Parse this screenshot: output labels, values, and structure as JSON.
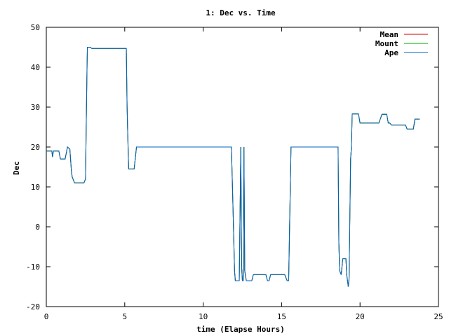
{
  "chart_data": {
    "type": "line",
    "title": "1: Dec vs. Time",
    "xlabel": "time (Elapse Hours)",
    "ylabel": "Dec",
    "xlim": [
      0,
      25
    ],
    "ylim": [
      -20,
      50
    ],
    "x_ticks": [
      "0",
      "5",
      "10",
      "15",
      "20",
      "25"
    ],
    "y_ticks": [
      "-20",
      "-10",
      "0",
      "10",
      "20",
      "30",
      "40",
      "50"
    ],
    "grid": false,
    "legend_position": "top-right",
    "series": [
      {
        "name": "Mean",
        "color": "#cc0000",
        "points": [
          [
            0,
            19
          ],
          [
            0.35,
            19
          ],
          [
            0.4,
            17.5
          ],
          [
            0.45,
            19
          ],
          [
            0.8,
            19
          ],
          [
            0.9,
            17
          ],
          [
            1.2,
            17
          ],
          [
            1.35,
            20
          ],
          [
            1.5,
            19.5
          ],
          [
            1.6,
            14
          ],
          [
            1.65,
            12.5
          ],
          [
            1.8,
            11
          ],
          [
            2.4,
            11
          ],
          [
            2.5,
            12
          ],
          [
            2.55,
            27
          ],
          [
            2.6,
            41
          ],
          [
            2.62,
            45
          ],
          [
            2.8,
            45
          ],
          [
            2.9,
            44.7
          ],
          [
            3.5,
            44.7
          ],
          [
            5.1,
            44.7
          ],
          [
            5.15,
            30
          ],
          [
            5.2,
            22
          ],
          [
            5.25,
            14.5
          ],
          [
            5.6,
            14.5
          ],
          [
            5.75,
            20
          ],
          [
            10.5,
            20
          ],
          [
            11.8,
            20
          ],
          [
            11.9,
            5
          ],
          [
            12.0,
            -11
          ],
          [
            12.05,
            -13.5
          ],
          [
            12.3,
            -13.5
          ],
          [
            12.4,
            20
          ],
          [
            12.45,
            -10
          ],
          [
            12.5,
            -13.5
          ],
          [
            12.55,
            -13.5
          ],
          [
            12.6,
            20
          ],
          [
            12.65,
            -11
          ],
          [
            12.75,
            -13.5
          ],
          [
            13.1,
            -13.5
          ],
          [
            13.2,
            -12
          ],
          [
            14.0,
            -12
          ],
          [
            14.1,
            -13.5
          ],
          [
            14.2,
            -13.5
          ],
          [
            14.3,
            -12
          ],
          [
            15.0,
            -12
          ],
          [
            15.2,
            -12
          ],
          [
            15.35,
            -13.5
          ],
          [
            15.45,
            -13.5
          ],
          [
            15.5,
            -2
          ],
          [
            15.6,
            20
          ],
          [
            16.5,
            20
          ],
          [
            18.6,
            20
          ],
          [
            18.65,
            -4
          ],
          [
            18.7,
            -11
          ],
          [
            18.8,
            -12
          ],
          [
            18.9,
            -8
          ],
          [
            19.1,
            -8
          ],
          [
            19.15,
            -12
          ],
          [
            19.25,
            -15
          ],
          [
            19.3,
            -13
          ],
          [
            19.4,
            17
          ],
          [
            19.45,
            20
          ],
          [
            19.5,
            28.3
          ],
          [
            19.9,
            28.3
          ],
          [
            20.0,
            26
          ],
          [
            20.5,
            26
          ],
          [
            21.2,
            26
          ],
          [
            21.4,
            28.2
          ],
          [
            21.7,
            28.2
          ],
          [
            21.8,
            26
          ],
          [
            21.9,
            26
          ],
          [
            22.0,
            25.5
          ],
          [
            22.9,
            25.5
          ],
          [
            23.0,
            24.5
          ],
          [
            23.4,
            24.5
          ],
          [
            23.5,
            27
          ],
          [
            23.8,
            27
          ]
        ]
      },
      {
        "name": "Mount",
        "color": "#00aa00",
        "points": [
          [
            0,
            19
          ],
          [
            0.35,
            19
          ],
          [
            0.4,
            17.5
          ],
          [
            0.45,
            19
          ],
          [
            0.8,
            19
          ],
          [
            0.9,
            17
          ],
          [
            1.2,
            17
          ],
          [
            1.35,
            20
          ],
          [
            1.5,
            19.5
          ],
          [
            1.6,
            14
          ],
          [
            1.65,
            12.5
          ],
          [
            1.8,
            11
          ],
          [
            2.4,
            11
          ],
          [
            2.5,
            12
          ],
          [
            2.55,
            27
          ],
          [
            2.6,
            41
          ],
          [
            2.62,
            45
          ],
          [
            2.8,
            45
          ],
          [
            2.9,
            44.7
          ],
          [
            3.5,
            44.7
          ],
          [
            5.1,
            44.7
          ],
          [
            5.15,
            30
          ],
          [
            5.2,
            22
          ],
          [
            5.25,
            14.5
          ],
          [
            5.6,
            14.5
          ],
          [
            5.75,
            20
          ],
          [
            10.5,
            20
          ],
          [
            11.8,
            20
          ],
          [
            11.9,
            5
          ],
          [
            12.0,
            -11
          ],
          [
            12.05,
            -13.5
          ],
          [
            12.3,
            -13.5
          ],
          [
            12.4,
            20
          ],
          [
            12.45,
            -10
          ],
          [
            12.5,
            -13.5
          ],
          [
            12.55,
            -13.5
          ],
          [
            12.6,
            20
          ],
          [
            12.65,
            -11
          ],
          [
            12.75,
            -13.5
          ],
          [
            13.1,
            -13.5
          ],
          [
            13.2,
            -12
          ],
          [
            14.0,
            -12
          ],
          [
            14.1,
            -13.5
          ],
          [
            14.2,
            -13.5
          ],
          [
            14.3,
            -12
          ],
          [
            15.0,
            -12
          ],
          [
            15.2,
            -12
          ],
          [
            15.35,
            -13.5
          ],
          [
            15.45,
            -13.5
          ],
          [
            15.5,
            -2
          ],
          [
            15.6,
            20
          ],
          [
            16.5,
            20
          ],
          [
            18.6,
            20
          ],
          [
            18.65,
            -4
          ],
          [
            18.7,
            -11
          ],
          [
            18.8,
            -12
          ],
          [
            18.9,
            -8
          ],
          [
            19.1,
            -8
          ],
          [
            19.15,
            -12
          ],
          [
            19.25,
            -15
          ],
          [
            19.3,
            -13
          ],
          [
            19.4,
            17
          ],
          [
            19.45,
            20
          ],
          [
            19.5,
            28.3
          ],
          [
            19.9,
            28.3
          ],
          [
            20.0,
            26
          ],
          [
            20.5,
            26
          ],
          [
            21.2,
            26
          ],
          [
            21.4,
            28.2
          ],
          [
            21.7,
            28.2
          ],
          [
            21.8,
            26
          ],
          [
            21.9,
            26
          ],
          [
            22.0,
            25.5
          ],
          [
            22.9,
            25.5
          ],
          [
            23.0,
            24.5
          ],
          [
            23.4,
            24.5
          ],
          [
            23.5,
            27
          ],
          [
            23.8,
            27
          ]
        ]
      },
      {
        "name": "Ape",
        "color": "#0060c0",
        "points": [
          [
            0,
            19
          ],
          [
            0.35,
            19
          ],
          [
            0.4,
            17.5
          ],
          [
            0.45,
            19
          ],
          [
            0.8,
            19
          ],
          [
            0.9,
            17
          ],
          [
            1.2,
            17
          ],
          [
            1.35,
            20
          ],
          [
            1.5,
            19.5
          ],
          [
            1.6,
            14
          ],
          [
            1.65,
            12.5
          ],
          [
            1.8,
            11
          ],
          [
            2.4,
            11
          ],
          [
            2.5,
            12
          ],
          [
            2.55,
            27
          ],
          [
            2.6,
            41
          ],
          [
            2.62,
            45
          ],
          [
            2.8,
            45
          ],
          [
            2.9,
            44.7
          ],
          [
            3.5,
            44.7
          ],
          [
            5.1,
            44.7
          ],
          [
            5.15,
            30
          ],
          [
            5.2,
            22
          ],
          [
            5.25,
            14.5
          ],
          [
            5.6,
            14.5
          ],
          [
            5.75,
            20
          ],
          [
            10.5,
            20
          ],
          [
            11.8,
            20
          ],
          [
            11.9,
            5
          ],
          [
            12.0,
            -11
          ],
          [
            12.05,
            -13.5
          ],
          [
            12.3,
            -13.5
          ],
          [
            12.4,
            20
          ],
          [
            12.45,
            -10
          ],
          [
            12.5,
            -13.5
          ],
          [
            12.55,
            -13.5
          ],
          [
            12.6,
            20
          ],
          [
            12.65,
            -11
          ],
          [
            12.75,
            -13.5
          ],
          [
            13.1,
            -13.5
          ],
          [
            13.2,
            -12
          ],
          [
            14.0,
            -12
          ],
          [
            14.1,
            -13.5
          ],
          [
            14.2,
            -13.5
          ],
          [
            14.3,
            -12
          ],
          [
            15.0,
            -12
          ],
          [
            15.2,
            -12
          ],
          [
            15.35,
            -13.5
          ],
          [
            15.45,
            -13.5
          ],
          [
            15.5,
            -2
          ],
          [
            15.6,
            20
          ],
          [
            16.5,
            20
          ],
          [
            18.6,
            20
          ],
          [
            18.65,
            -4
          ],
          [
            18.7,
            -11
          ],
          [
            18.8,
            -12
          ],
          [
            18.9,
            -8
          ],
          [
            19.1,
            -8
          ],
          [
            19.15,
            -12
          ],
          [
            19.25,
            -15
          ],
          [
            19.3,
            -13
          ],
          [
            19.4,
            17
          ],
          [
            19.45,
            20
          ],
          [
            19.5,
            28.3
          ],
          [
            19.9,
            28.3
          ],
          [
            20.0,
            26
          ],
          [
            20.5,
            26
          ],
          [
            21.2,
            26
          ],
          [
            21.4,
            28.2
          ],
          [
            21.7,
            28.2
          ],
          [
            21.8,
            26
          ],
          [
            21.9,
            26
          ],
          [
            22.0,
            25.5
          ],
          [
            22.9,
            25.5
          ],
          [
            23.0,
            24.5
          ],
          [
            23.4,
            24.5
          ],
          [
            23.5,
            27
          ],
          [
            23.8,
            27
          ]
        ]
      }
    ]
  }
}
